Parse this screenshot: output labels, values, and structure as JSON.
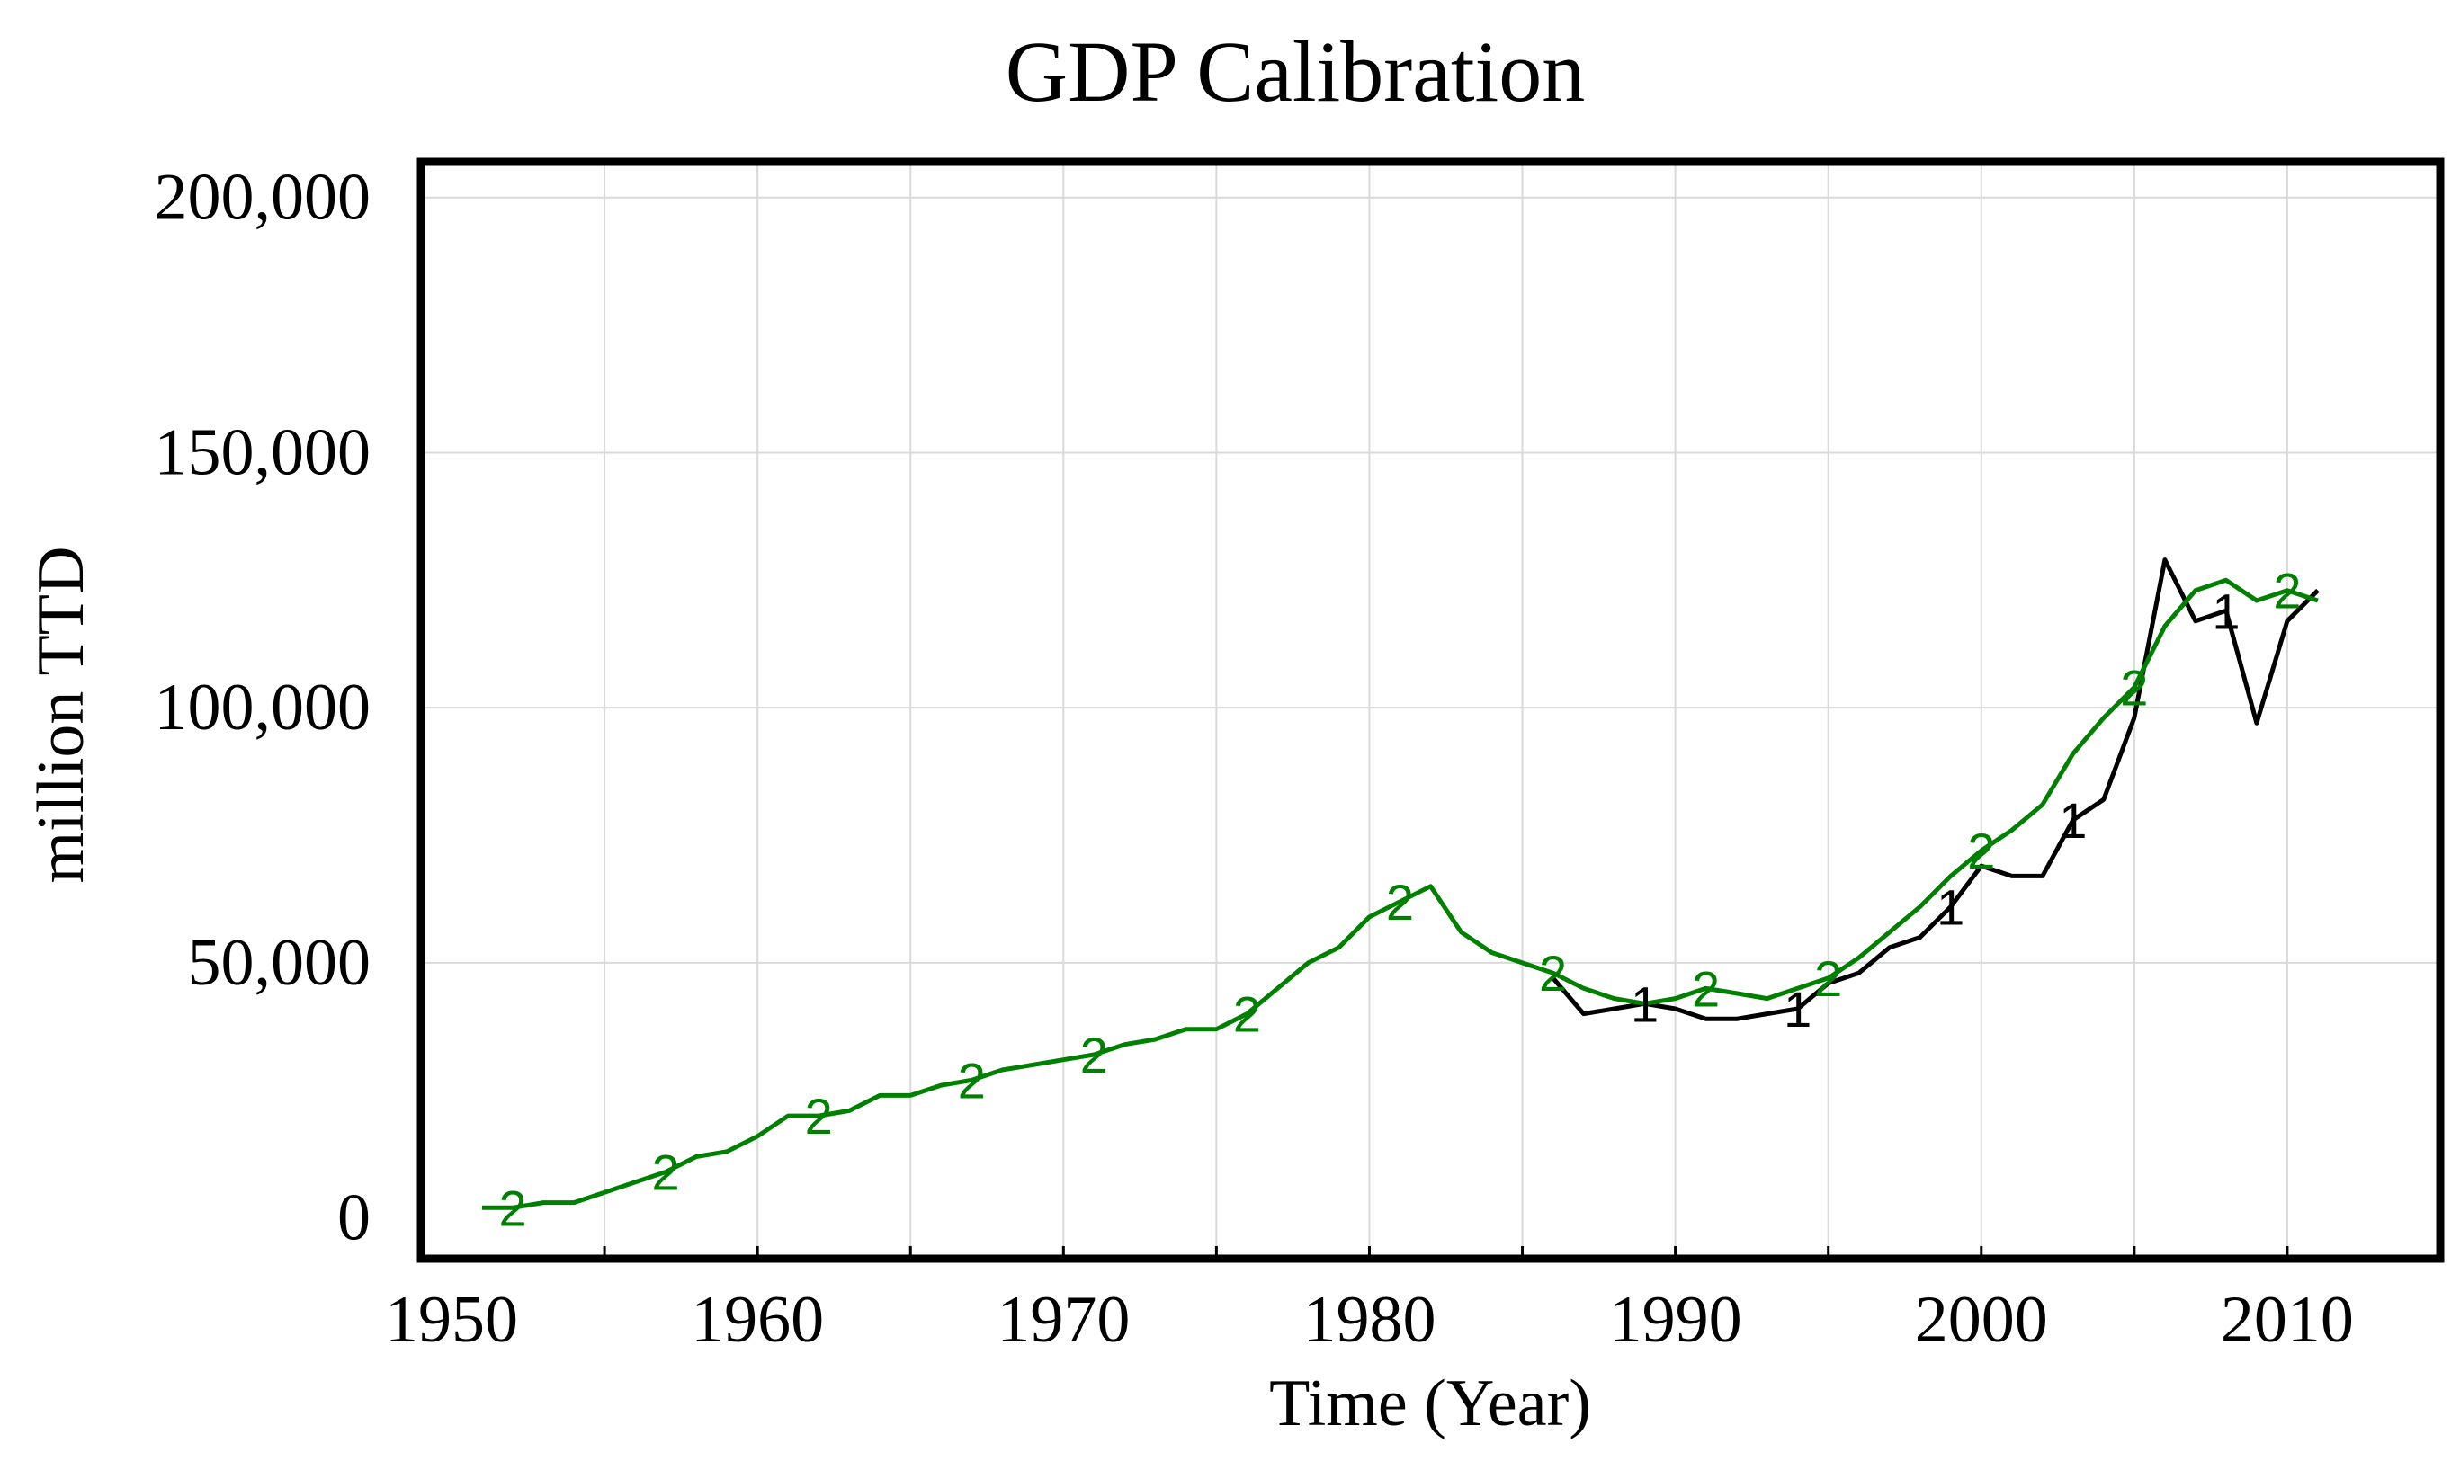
{
  "chart_data": {
    "type": "line",
    "title": "GDP Calibration",
    "xlabel": "Time (Year)",
    "ylabel": "million TTD",
    "xlim": [
      1949,
      2015
    ],
    "ylim": [
      -8000,
      207000
    ],
    "x_ticks": [
      1950,
      1960,
      1970,
      1980,
      1990,
      2000,
      2010
    ],
    "x_tick_labels": [
      "1950",
      "1960",
      "1970",
      "1980",
      "1990",
      "2000",
      "2010"
    ],
    "y_ticks": [
      0,
      50000,
      100000,
      150000,
      200000
    ],
    "y_tick_labels": [
      "0",
      "50,000",
      "100,000",
      "150,000",
      "200,000"
    ],
    "grid": true,
    "series": [
      {
        "name": "1",
        "marker": "1",
        "color": "#000000",
        "x": [
          1986,
          1987,
          1988,
          1989,
          1990,
          1991,
          1992,
          1993,
          1994,
          1995,
          1996,
          1997,
          1998,
          1999,
          2000,
          2001,
          2002,
          2003,
          2004,
          2005,
          2006,
          2007,
          2008,
          2009,
          2010,
          2011
        ],
        "values": [
          47000,
          40000,
          41000,
          42000,
          41000,
          39000,
          39000,
          40000,
          41000,
          46000,
          48000,
          53000,
          55000,
          61000,
          69000,
          67000,
          67000,
          78000,
          82000,
          98000,
          129000,
          117000,
          119000,
          97000,
          117000,
          123000
        ],
        "marker_indices": [
          3,
          8,
          13,
          17,
          22
        ],
        "marker_values": [
          "1",
          "1",
          "1",
          "1",
          "1"
        ]
      },
      {
        "name": "2",
        "marker": "2",
        "color": "#008000",
        "x": [
          1951,
          1952,
          1953,
          1954,
          1955,
          1956,
          1957,
          1958,
          1959,
          1960,
          1961,
          1962,
          1963,
          1964,
          1965,
          1966,
          1967,
          1968,
          1969,
          1970,
          1971,
          1972,
          1973,
          1974,
          1975,
          1976,
          1977,
          1978,
          1979,
          1980,
          1981,
          1982,
          1983,
          1984,
          1985,
          1986,
          1987,
          1988,
          1989,
          1990,
          1991,
          1992,
          1993,
          1994,
          1995,
          1996,
          1997,
          1998,
          1999,
          2000,
          2001,
          2002,
          2003,
          2004,
          2005,
          2006,
          2007,
          2008,
          2009,
          2010,
          2011
        ],
        "values": [
          2000,
          2000,
          3000,
          3000,
          5000,
          7000,
          9000,
          12000,
          13000,
          16000,
          20000,
          20000,
          21000,
          24000,
          24000,
          26000,
          27000,
          29000,
          30000,
          31000,
          32000,
          34000,
          35000,
          37000,
          37000,
          40000,
          45000,
          50000,
          53000,
          59000,
          62000,
          65000,
          56000,
          52000,
          50000,
          48000,
          45000,
          43000,
          42000,
          43000,
          45000,
          44000,
          43000,
          45000,
          47000,
          51000,
          56000,
          61000,
          67000,
          72000,
          76000,
          81000,
          91000,
          98000,
          104000,
          116000,
          123000,
          125000,
          121000,
          123000,
          121000
        ],
        "marker_indices": [
          1,
          6,
          11,
          16,
          20,
          25,
          30,
          35,
          40,
          44,
          49,
          54,
          59
        ],
        "marker_values": [
          "2",
          "2",
          "2",
          "2",
          "2",
          "2",
          "2",
          "2",
          "2",
          "2",
          "2",
          "2",
          "2"
        ]
      }
    ]
  }
}
